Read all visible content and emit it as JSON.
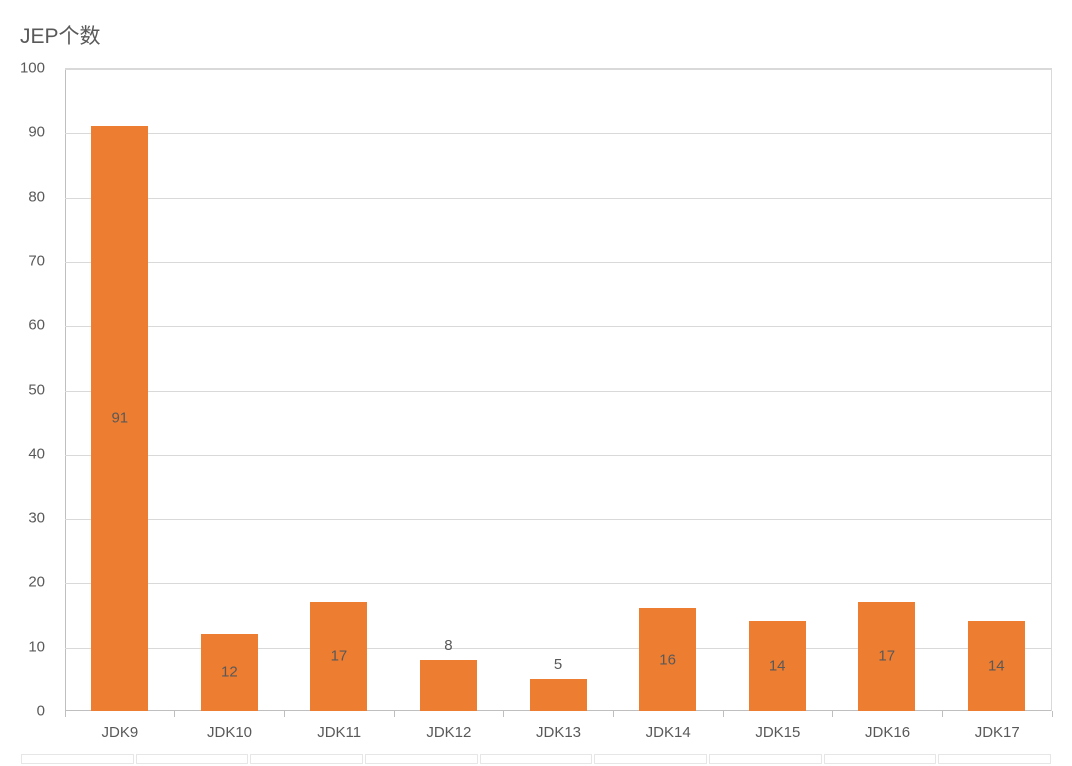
{
  "chart": {
    "type": "bar",
    "title": "JEP个数",
    "title_fontsize": 21,
    "title_color": "#595959",
    "categories": [
      "JDK9",
      "JDK10",
      "JDK11",
      "JDK12",
      "JDK13",
      "JDK14",
      "JDK15",
      "JDK16",
      "JDK17"
    ],
    "values": [
      91,
      12,
      17,
      8,
      5,
      16,
      14,
      17,
      14
    ],
    "bar_color": "#ed7d31",
    "bar_width_ratio": 0.52,
    "ylim": [
      0,
      100
    ],
    "ytick_step": 10,
    "yticks": [
      0,
      10,
      20,
      30,
      40,
      50,
      60,
      70,
      80,
      90,
      100
    ],
    "grid_color": "#d9d9d9",
    "axis_color": "#bfbfbf",
    "background_color": "#ffffff",
    "tick_label_color": "#595959",
    "tick_label_fontsize": 15,
    "value_label_color": "#595959",
    "value_label_fontsize": 15,
    "category_label_fontsize": 15,
    "small_bar_threshold": 10
  }
}
